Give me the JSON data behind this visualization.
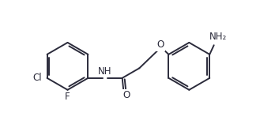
{
  "bg_color": "#ffffff",
  "line_color": "#2b2b3b",
  "line_width": 1.4,
  "font_size": 8.5,
  "figsize": [
    3.29,
    1.76
  ],
  "dpi": 100,
  "xlim": [
    0.0,
    6.8
  ],
  "ylim": [
    0.0,
    4.2
  ]
}
